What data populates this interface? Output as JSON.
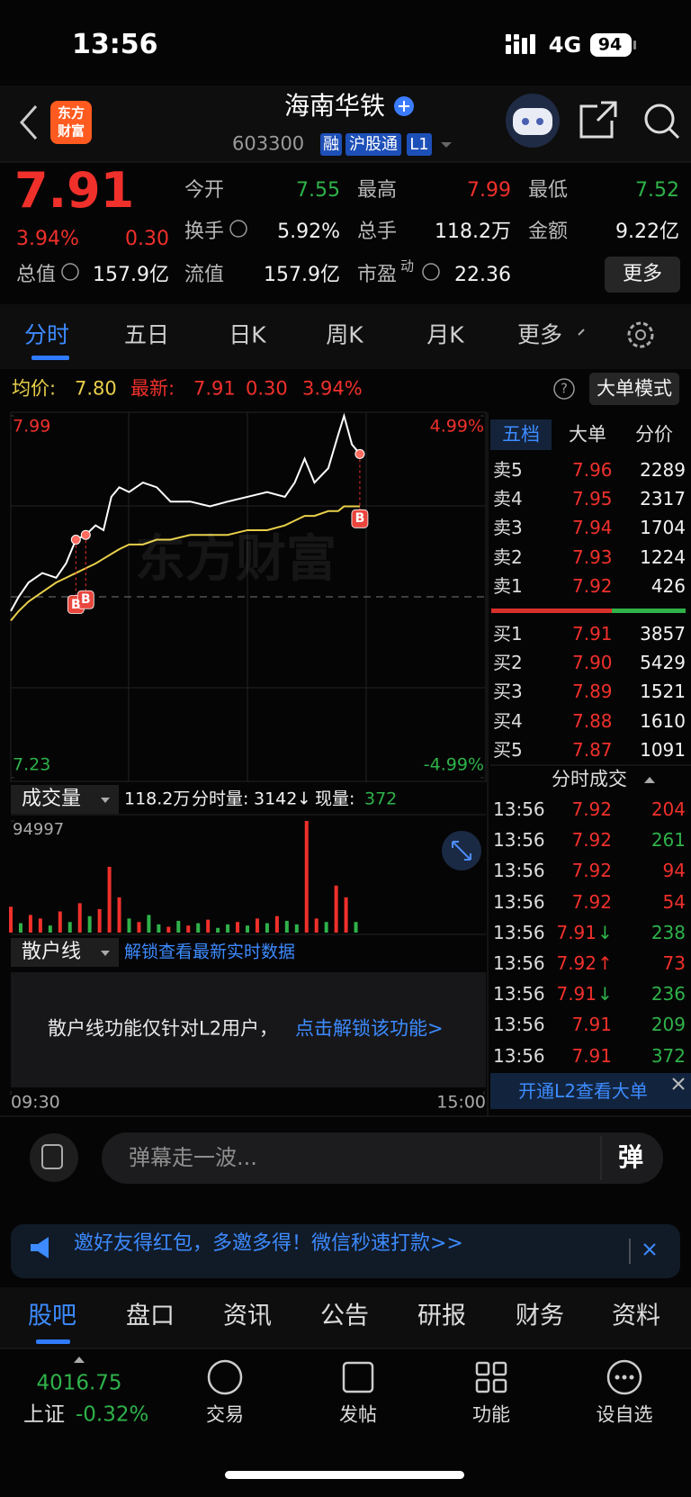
{
  "status_bar": {
    "time": "13:56",
    "network": "4G",
    "battery": "94"
  },
  "header": {
    "logo": [
      "东方",
      "财富"
    ],
    "title": "海南华铁",
    "code": "603300",
    "tags": [
      "融",
      "沪股通",
      "L1"
    ]
  },
  "quote": {
    "price": "7.91",
    "change_pct": "3.94%",
    "change": "0.30",
    "fields": [
      {
        "label": "今开",
        "value": "7.55"
      },
      {
        "label": "最高",
        "value": "7.99"
      },
      {
        "label": "最低",
        "value": "7.52"
      },
      {
        "label": "换手",
        "value": "5.92%"
      },
      {
        "label": "总手",
        "value": "118.2万"
      },
      {
        "label": "金额",
        "value": "9.22亿"
      },
      {
        "label": "总值",
        "value": "157.9亿"
      },
      {
        "label": "流值",
        "value": "157.9亿"
      },
      {
        "label": "市盈",
        "superscript": "动",
        "value": "22.36"
      }
    ],
    "more": "更多"
  },
  "tabs": [
    "分时",
    "五日",
    "日K",
    "周K",
    "月K",
    "更多"
  ],
  "info_line": {
    "avg_label": "均价:",
    "avg": "7.80",
    "last_label": "最新:",
    "last": "7.91",
    "change": "0.30",
    "change_pct": "3.94%",
    "help": "?",
    "mode_button": "大单模式"
  },
  "chart_data": [
    {
      "type": "line",
      "watermark": "东方财富",
      "x": [
        0,
        4,
        9,
        16,
        23,
        28,
        33,
        38,
        43,
        47,
        51,
        55,
        60,
        67,
        74,
        81,
        91,
        101,
        110,
        120,
        130,
        139,
        144,
        149,
        154,
        161,
        166,
        169,
        173,
        177
      ],
      "series": [
        {
          "name": "最新",
          "color": "#ffffff",
          "values": [
            7.58,
            7.61,
            7.64,
            7.66,
            7.65,
            7.68,
            7.73,
            7.74,
            7.76,
            7.75,
            7.82,
            7.84,
            7.83,
            7.85,
            7.84,
            7.81,
            7.81,
            7.8,
            7.81,
            7.82,
            7.83,
            7.82,
            7.85,
            7.9,
            7.85,
            7.88,
            7.95,
            7.99,
            7.93,
            7.91
          ]
        },
        {
          "name": "均价",
          "color": "#e8cf4a",
          "values": [
            7.56,
            7.58,
            7.6,
            7.62,
            7.64,
            7.65,
            7.66,
            7.67,
            7.68,
            7.69,
            7.7,
            7.71,
            7.72,
            7.72,
            7.73,
            7.73,
            7.74,
            7.74,
            7.74,
            7.75,
            7.75,
            7.76,
            7.77,
            7.78,
            7.78,
            7.79,
            7.79,
            7.8,
            7.8,
            7.8
          ]
        }
      ],
      "prev_close": 7.61,
      "xlim": [
        0,
        240
      ],
      "xticks": [
        {
          "value": 0,
          "label": "09:30"
        },
        {
          "value": 240,
          "label": "15:00"
        }
      ],
      "ylim": [
        7.23,
        7.99
      ],
      "yticks": [
        7.23,
        7.99
      ],
      "y2lim": [
        -4.99,
        4.99
      ],
      "y2ticks": [
        {
          "value": -4.99,
          "label": "-4.99%"
        },
        {
          "value": 4.99,
          "label": "4.99%"
        }
      ],
      "annotations": [
        {
          "x": 33,
          "y": 7.73,
          "label": "B"
        },
        {
          "x": 38,
          "y": 7.74,
          "label": "B"
        },
        {
          "x": 177,
          "y": 7.91,
          "label": "B"
        }
      ]
    },
    {
      "type": "bar",
      "x": [
        0,
        5,
        10,
        15,
        20,
        25,
        30,
        35,
        40,
        45,
        50,
        55,
        60,
        65,
        70,
        75,
        80,
        85,
        90,
        95,
        100,
        105,
        110,
        115,
        120,
        125,
        130,
        135,
        140,
        145,
        150,
        155,
        160,
        165,
        170,
        175
      ],
      "values": [
        22000,
        8000,
        15000,
        12000,
        6000,
        18000,
        9000,
        25000,
        14000,
        20000,
        56000,
        30000,
        12000,
        9000,
        15000,
        7000,
        5000,
        10000,
        6000,
        8000,
        11000,
        4000,
        7000,
        9000,
        6000,
        12000,
        8000,
        14000,
        10000,
        7000,
        94997,
        12000,
        9000,
        40000,
        30000,
        9000
      ],
      "colors": [
        "#f0302b",
        "#2fb24a",
        "#f0302b",
        "#f0302b",
        "#2fb24a",
        "#f0302b",
        "#2fb24a",
        "#f0302b",
        "#2fb24a",
        "#f0302b",
        "#f0302b",
        "#f0302b",
        "#2fb24a",
        "#f0302b",
        "#2fb24a",
        "#2fb24a",
        "#f0302b",
        "#2fb24a",
        "#f0302b",
        "#2fb24a",
        "#f0302b",
        "#2fb24a",
        "#2fb24a",
        "#f0302b",
        "#2fb24a",
        "#f0302b",
        "#2fb24a",
        "#f0302b",
        "#2fb24a",
        "#2fb24a",
        "#f0302b",
        "#f0302b",
        "#2fb24a",
        "#f0302b",
        "#f0302b",
        "#2fb24a"
      ],
      "xlim": [
        0,
        240
      ],
      "ylim": [
        0,
        94997
      ],
      "yticks": [
        94997
      ]
    }
  ],
  "volume_header": {
    "label": "成交量",
    "total": "118.2万",
    "minute_label": "分时量:",
    "minute": "3142",
    "arrow": "↓",
    "current_label": "现量:",
    "current": "372"
  },
  "retail_line": {
    "label": "散户线",
    "link": "解锁查看最新实时数据",
    "locked_text": "散户线功能仅针对L2用户，",
    "locked_link": "点击解锁该功能>"
  },
  "order_book": {
    "tabs": [
      "五档",
      "大单",
      "分价"
    ],
    "asks": [
      {
        "label": "卖5",
        "price": "7.96",
        "volume": "2289"
      },
      {
        "label": "卖4",
        "price": "7.95",
        "volume": "2317"
      },
      {
        "label": "卖3",
        "price": "7.94",
        "volume": "1704"
      },
      {
        "label": "卖2",
        "price": "7.93",
        "volume": "1224"
      },
      {
        "label": "卖1",
        "price": "7.92",
        "volume": "426"
      }
    ],
    "bids": [
      {
        "label": "买1",
        "price": "7.91",
        "volume": "3857"
      },
      {
        "label": "买2",
        "price": "7.90",
        "volume": "5429"
      },
      {
        "label": "买3",
        "price": "7.89",
        "volume": "1521"
      },
      {
        "label": "买4",
        "price": "7.88",
        "volume": "1610"
      },
      {
        "label": "买5",
        "price": "7.87",
        "volume": "1091"
      }
    ]
  },
  "trades": {
    "title": "分时成交",
    "rows": [
      {
        "time": "13:56",
        "price": "7.92",
        "volume": "204",
        "color": "#f0302b"
      },
      {
        "time": "13:56",
        "price": "7.92",
        "volume": "261",
        "color": "#2fb24a"
      },
      {
        "time": "13:56",
        "price": "7.92",
        "volume": "94",
        "color": "#f0302b"
      },
      {
        "time": "13:56",
        "price": "7.92",
        "volume": "54",
        "color": "#f0302b"
      },
      {
        "time": "13:56",
        "price": "7.91",
        "arrow": "↓",
        "volume": "238",
        "color": "#2fb24a"
      },
      {
        "time": "13:56",
        "price": "7.92",
        "arrow": "↑",
        "volume": "73",
        "color": "#f0302b"
      },
      {
        "time": "13:56",
        "price": "7.91",
        "arrow": "↓",
        "volume": "236",
        "color": "#2fb24a"
      },
      {
        "time": "13:56",
        "price": "7.91",
        "volume": "209",
        "color": "#2fb24a"
      },
      {
        "time": "13:56",
        "price": "7.91",
        "volume": "372",
        "color": "#2fb24a"
      }
    ],
    "l2_banner": "开通L2查看大单"
  },
  "comment": {
    "placeholder": "弹幕走一波...",
    "button": "弹"
  },
  "promo": {
    "text": "邀好友得红包，多邀多得！微信秒速打款>>"
  },
  "bottom_tabs": [
    "股吧",
    "盘口",
    "资讯",
    "公告",
    "研报",
    "财务",
    "资料"
  ],
  "nav": {
    "index_value": "4016.75",
    "index_name": "上证",
    "index_change": "-0.32%",
    "items": [
      "交易",
      "发帖",
      "功能",
      "设自选"
    ]
  }
}
